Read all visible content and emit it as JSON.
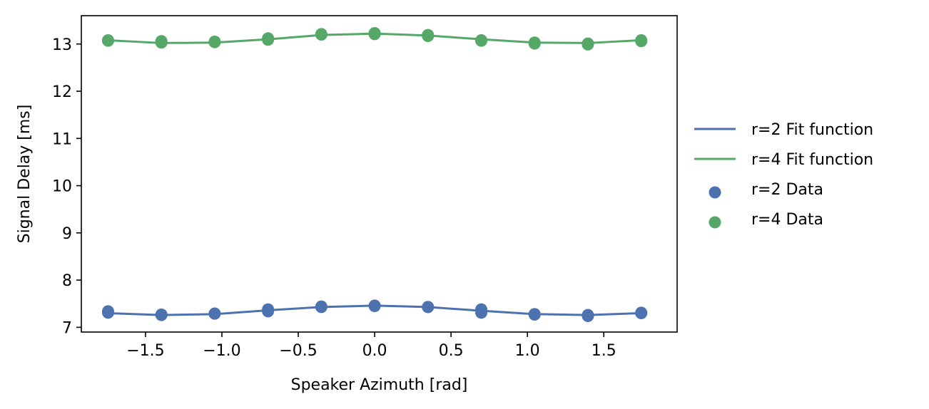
{
  "chart_data": {
    "type": "scatter",
    "xlabel": "Speaker Azimuth [rad]",
    "ylabel": "Signal Delay [ms]",
    "xlim": [
      -1.92,
      1.98
    ],
    "ylim": [
      6.9,
      13.6
    ],
    "xticks": [
      -1.5,
      -1.0,
      -0.5,
      0.0,
      0.5,
      1.0,
      1.5
    ],
    "xtick_labels": [
      "−1.5",
      "−1.0",
      "−0.5",
      "0.0",
      "0.5",
      "1.0",
      "1.5"
    ],
    "yticks": [
      7,
      8,
      9,
      10,
      11,
      12,
      13
    ],
    "ytick_labels": [
      "7",
      "8",
      "9",
      "10",
      "11",
      "12",
      "13"
    ],
    "grid": false,
    "legend_position": "outside-right",
    "series": [
      {
        "name": "r=2 Fit function",
        "kind": "line",
        "color": "#4c72b0",
        "x": [
          -1.745,
          -1.396,
          -1.047,
          -0.698,
          -0.349,
          0.0,
          0.349,
          0.698,
          1.047,
          1.396,
          1.745
        ],
        "y": [
          7.3,
          7.26,
          7.28,
          7.36,
          7.43,
          7.46,
          7.43,
          7.35,
          7.28,
          7.26,
          7.3
        ]
      },
      {
        "name": "r=4 Fit function",
        "kind": "line",
        "color": "#55a868",
        "x": [
          -1.745,
          -1.396,
          -1.047,
          -0.698,
          -0.349,
          0.0,
          0.349,
          0.698,
          1.047,
          1.396,
          1.745
        ],
        "y": [
          13.08,
          13.02,
          13.03,
          13.1,
          13.19,
          13.22,
          13.18,
          13.1,
          13.03,
          13.02,
          13.08
        ]
      },
      {
        "name": "r=2 Data",
        "kind": "scatter",
        "color": "#4c72b0",
        "x": [
          -1.745,
          -1.745,
          -1.396,
          -1.396,
          -1.047,
          -1.047,
          -0.698,
          -0.698,
          -0.349,
          -0.349,
          0.0,
          0.0,
          0.349,
          0.349,
          0.698,
          0.698,
          1.047,
          1.047,
          1.396,
          1.396,
          1.745,
          1.745
        ],
        "y": [
          7.31,
          7.34,
          7.26,
          7.27,
          7.29,
          7.29,
          7.34,
          7.38,
          7.43,
          7.44,
          7.45,
          7.46,
          7.43,
          7.43,
          7.31,
          7.38,
          7.27,
          7.28,
          7.24,
          7.26,
          7.3,
          7.31
        ]
      },
      {
        "name": "r=4 Data",
        "kind": "scatter",
        "color": "#55a868",
        "x": [
          -1.745,
          -1.745,
          -1.396,
          -1.396,
          -1.047,
          -1.047,
          -0.698,
          -0.698,
          -0.349,
          -0.349,
          0.0,
          0.0,
          0.349,
          0.349,
          0.698,
          0.698,
          1.047,
          1.047,
          1.396,
          1.396,
          1.745,
          1.745
        ],
        "y": [
          13.07,
          13.08,
          13.03,
          13.06,
          13.04,
          13.05,
          13.09,
          13.12,
          13.2,
          13.21,
          13.21,
          13.23,
          13.17,
          13.19,
          13.07,
          13.08,
          13.01,
          13.03,
          12.99,
          13.01,
          13.06,
          13.08
        ]
      }
    ]
  }
}
